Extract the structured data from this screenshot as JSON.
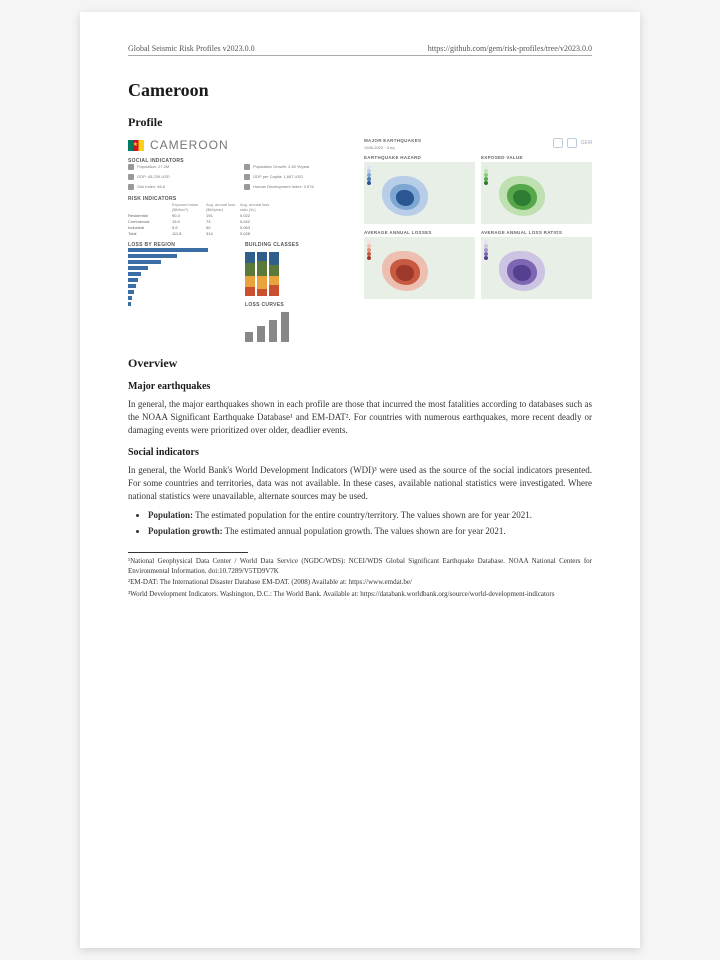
{
  "header": {
    "left": "Global Seismic Risk Profiles v2023.0.0",
    "right": "https://github.com/gem/risk-profiles/tree/v2023.0.0"
  },
  "title": "Cameroon",
  "profile_heading": "Profile",
  "country_label": "CAMEROON",
  "sections": {
    "social_indicators_label": "SOCIAL INDICATORS",
    "risk_indicators_label": "RISK INDICATORS",
    "loss_by_region_label": "LOSS BY REGION",
    "building_classes_label": "BUILDING CLASSES",
    "loss_curves_label": "LOSS CURVES",
    "major_eq_label": "MAJOR EARTHQUAKES"
  },
  "social_indicators": {
    "items": [
      {
        "label": "Population: 27.2M"
      },
      {
        "label": "Population Growth: 2.60 %/year"
      },
      {
        "label": "GDP: 45,239 USD"
      },
      {
        "label": "GDP per Capita: 1,667 USD"
      },
      {
        "label": "Gini Index: 46.6"
      },
      {
        "label": "Human Development Index: 0.576"
      }
    ]
  },
  "risk_table": {
    "cols": [
      "",
      "Exposed value ($M/km²)",
      "Avg. annual loss ($M/year)",
      "Avg. annual loss ratio (‰)"
    ],
    "rows": [
      [
        "Residential",
        "90.3",
        "191",
        "0.022"
      ],
      [
        "Commercial",
        "15.9",
        "73",
        "0.042"
      ],
      [
        "Industrial",
        "5.6",
        "50",
        "0.063"
      ],
      [
        "Total",
        "111.8",
        "314",
        "0.028"
      ]
    ]
  },
  "loss_by_region": {
    "bars": [
      72,
      44,
      30,
      18,
      12,
      9,
      7,
      5,
      4,
      3
    ],
    "bar_color": "#3b6ea5"
  },
  "building_classes": {
    "stacks": [
      [
        20,
        25,
        30,
        25
      ],
      [
        15,
        30,
        35,
        20
      ],
      [
        25,
        20,
        25,
        30
      ]
    ],
    "seg_colors": [
      "#c94f2e",
      "#e8a33d",
      "#5b7a3a",
      "#2f5f8a"
    ]
  },
  "loss_curves": {
    "heights": [
      10,
      16,
      22,
      30
    ],
    "color": "#888"
  },
  "maps": [
    {
      "title": "EARTHQUAKE HAZARD",
      "palette": [
        "#dce6f2",
        "#b7cde8",
        "#7fa7d4",
        "#4c7ab5",
        "#2a5691"
      ],
      "blob_color": "#7fa7d4"
    },
    {
      "title": "EXPOSED VALUE",
      "palette": [
        "#e3efdd",
        "#bfe0b1",
        "#8fc97b",
        "#57a84a",
        "#2e7d32"
      ],
      "blob_color": "#57a84a"
    },
    {
      "title": "AVERAGE ANNUAL LOSSES",
      "palette": [
        "#f6e0da",
        "#edbfb1",
        "#df8f78",
        "#c75a40",
        "#9c392a"
      ],
      "blob_color": "#c75a40"
    },
    {
      "title": "AVERAGE ANNUAL LOSS RATIOS",
      "palette": [
        "#e7e2f0",
        "#cdc3e2",
        "#a897cd",
        "#7d67b2",
        "#543f90"
      ],
      "blob_color": "#7d67b2"
    }
  ],
  "logos_text": "GEM",
  "overview_heading": "Overview",
  "major_eq_heading": "Major earthquakes",
  "major_eq_text": "In general, the major earthquakes shown in each profile are those that incurred the most fatalities according to databases such as the NOAA Significant Earthquake Database¹ and EM-DAT². For countries with numerous earthquakes, more recent deadly or damaging events were prioritized over older, deadlier events.",
  "social_heading": "Social indicators",
  "social_text": "In general, the World Bank's World Development Indicators (WDI)³ were used as the source of the social indicators presented. For some countries and territories, data was not available. In these cases, available national statistics were investigated. Where national statistics were unavailable, alternate sources may be used.",
  "bullets": [
    {
      "bold": "Population:",
      "rest": " The estimated population for the entire country/territory. The values shown are for year 2021."
    },
    {
      "bold": "Population growth:",
      "rest": " The estimated annual population growth. The values shown are for year 2021."
    }
  ],
  "footnotes": [
    "¹National Geophysical Data Center / World Data Service (NGDC/WDS): NCEI/WDS Global Significant Earthquake Database. NOAA National Centers for Environmental Information. doi:10.7289/V5TD9V7K",
    "²EM-DAT: The International Disaster Database EM-DAT. (2008) Available at: https://www.emdat.be/",
    "³World Development Indicators. Washington, D.C.: The World Bank. Available at: https://databank.worldbank.org/source/world-development-indicators"
  ]
}
